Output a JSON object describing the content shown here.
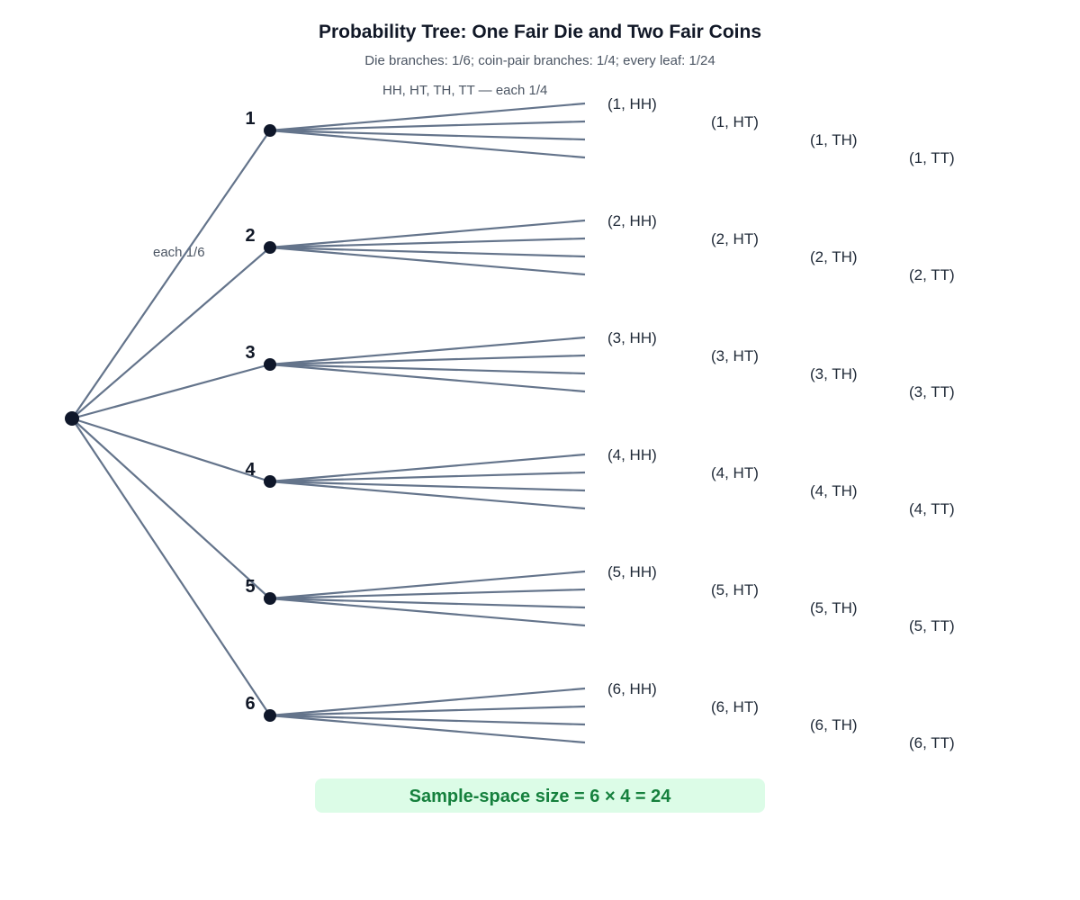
{
  "title": "Probability Tree: One Fair Die and Two Fair Coins",
  "subtitle": "Die branches: 1/6; coin-pair branches: 1/4; every leaf: 1/24",
  "coin_annotation": "HH, HT, TH, TT — each 1/4",
  "die_annotation": "each 1/6",
  "summary": "Sample-space size = 6 × 4 = 24",
  "colors": {
    "branch": "#64748b",
    "node": "#0f172a",
    "summary_bg": "#dcfce7",
    "summary_text": "#15803d"
  },
  "die_outcomes": [
    {
      "label": "1",
      "leaves": [
        "(1, HH)",
        "(1, HT)",
        "(1, TH)",
        "(1, TT)"
      ]
    },
    {
      "label": "2",
      "leaves": [
        "(2, HH)",
        "(2, HT)",
        "(2, TH)",
        "(2, TT)"
      ]
    },
    {
      "label": "3",
      "leaves": [
        "(3, HH)",
        "(3, HT)",
        "(3, TH)",
        "(3, TT)"
      ]
    },
    {
      "label": "4",
      "leaves": [
        "(4, HH)",
        "(4, HT)",
        "(4, TH)",
        "(4, TT)"
      ]
    },
    {
      "label": "5",
      "leaves": [
        "(5, HH)",
        "(5, HT)",
        "(5, TH)",
        "(5, TT)"
      ]
    },
    {
      "label": "6",
      "leaves": [
        "(6, HH)",
        "(6, HT)",
        "(6, TH)",
        "(6, TT)"
      ]
    }
  ]
}
